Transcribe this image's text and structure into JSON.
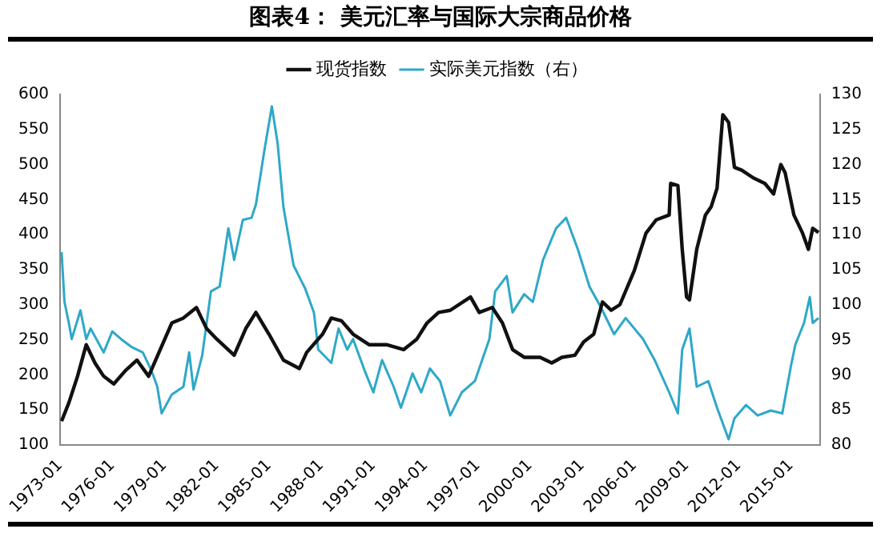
{
  "chart_data": {
    "type": "line",
    "title": "图表4：  美元汇率与国际大宗商品价格",
    "xlim": [
      "1973-01",
      "2016-09"
    ],
    "xticks": [
      "1973-01",
      "1976-01",
      "1979-01",
      "1982-01",
      "1985-01",
      "1988-01",
      "1991-01",
      "1994-01",
      "1997-01",
      "2000-01",
      "2003-01",
      "2006-01",
      "2009-01",
      "2012-01",
      "2015-01"
    ],
    "ylim": [
      100,
      600
    ],
    "yticks": [
      100,
      150,
      200,
      250,
      300,
      350,
      400,
      450,
      500,
      550,
      600
    ],
    "y2lim": [
      80,
      130
    ],
    "y2ticks": [
      80,
      85,
      90,
      95,
      100,
      105,
      110,
      115,
      120,
      125,
      130
    ],
    "grid": false,
    "legend": "top",
    "marker": "none",
    "line_style": "solid",
    "series": [
      {
        "name": "现货指数",
        "color": "#111111",
        "x": [
          "1973-02",
          "1973-07",
          "1974-01",
          "1974-07",
          "1975-01",
          "1975-07",
          "1976-02",
          "1976-10",
          "1977-06",
          "1978-02",
          "1978-10",
          "1979-06",
          "1980-02",
          "1980-11",
          "1981-06",
          "1982-01",
          "1983-01",
          "1983-09",
          "1984-04",
          "1985-01",
          "1985-11",
          "1986-10",
          "1987-03",
          "1988-02",
          "1988-08",
          "1989-03",
          "1989-11",
          "1990-10",
          "1991-10",
          "1992-10",
          "1993-07",
          "1994-02",
          "1994-10",
          "1995-06",
          "1996-08",
          "1997-02",
          "1997-11",
          "1998-06",
          "1999-01",
          "1999-09",
          "2000-08",
          "2001-04",
          "2001-11",
          "2002-08",
          "2003-02",
          "2003-09",
          "2004-03",
          "2004-09",
          "2005-03",
          "2006-01",
          "2006-09",
          "2007-04",
          "2008-01",
          "2008-02",
          "2008-07",
          "2008-10",
          "2009-01",
          "2009-03",
          "2009-08",
          "2010-02",
          "2010-06",
          "2010-10",
          "2011-02",
          "2011-06",
          "2011-10",
          "2012-03",
          "2012-11",
          "2013-07",
          "2014-01",
          "2014-06",
          "2014-09",
          "2015-03",
          "2015-09",
          "2016-01",
          "2016-04",
          "2016-08"
        ],
        "values": [
          134,
          160,
          198,
          243,
          217,
          198,
          187,
          206,
          221,
          198,
          236,
          274,
          281,
          296,
          266,
          251,
          228,
          266,
          289,
          258,
          221,
          209,
          232,
          258,
          281,
          277,
          258,
          243,
          243,
          236,
          251,
          274,
          289,
          292,
          311,
          289,
          296,
          274,
          236,
          225,
          225,
          217,
          225,
          228,
          247,
          258,
          304,
          292,
          300,
          349,
          402,
          421,
          428,
          473,
          470,
          379,
          311,
          307,
          379,
          428,
          440,
          466,
          571,
          560,
          496,
          492,
          481,
          473,
          458,
          500,
          488,
          428,
          402,
          379,
          409,
          403
        ]
      },
      {
        "name": "实际美元指数（右）",
        "color": "#2ea8c8",
        "axis": "y2",
        "x": [
          "1973-02",
          "1973-04",
          "1973-07",
          "1973-09",
          "1974-03",
          "1974-07",
          "1974-10",
          "1975-07",
          "1976-01",
          "1976-07",
          "1977-02",
          "1977-10",
          "1978-04",
          "1978-08",
          "1978-11",
          "1979-06",
          "1980-02",
          "1980-06",
          "1980-09",
          "1981-03",
          "1981-09",
          "1982-03",
          "1982-09",
          "1983-01",
          "1983-07",
          "1984-01",
          "1984-04",
          "1984-10",
          "1985-03",
          "1985-07",
          "1985-11",
          "1986-06",
          "1987-02",
          "1987-08",
          "1987-11",
          "1988-08",
          "1989-01",
          "1989-07",
          "1989-11",
          "1990-07",
          "1991-01",
          "1991-07",
          "1992-03",
          "1992-08",
          "1993-04",
          "1993-10",
          "1994-04",
          "1994-11",
          "1995-06",
          "1996-02",
          "1996-11",
          "1997-09",
          "1998-01",
          "1998-09",
          "1999-01",
          "1999-09",
          "2000-03",
          "2000-10",
          "2001-07",
          "2002-02",
          "2002-10",
          "2003-06",
          "2004-02",
          "2004-11",
          "2005-07",
          "2006-07",
          "2007-03",
          "2008-01",
          "2008-07",
          "2008-10",
          "2009-03",
          "2009-08",
          "2010-04",
          "2010-10",
          "2011-06",
          "2011-10",
          "2012-06",
          "2013-02",
          "2013-11",
          "2014-07",
          "2015-01",
          "2015-04",
          "2015-10",
          "2016-02",
          "2016-04",
          "2016-08"
        ],
        "values": [
          107.5,
          100.4,
          97.4,
          95.1,
          99.2,
          95.1,
          96.6,
          93.2,
          96.2,
          95.1,
          94.0,
          93.2,
          90.6,
          88.3,
          84.5,
          87.2,
          88.3,
          93.2,
          87.9,
          92.8,
          101.9,
          102.6,
          110.9,
          106.4,
          112.1,
          112.4,
          114.3,
          122.2,
          128.3,
          123.0,
          113.9,
          105.6,
          102.3,
          98.9,
          93.6,
          91.7,
          96.6,
          93.6,
          95.1,
          90.6,
          87.5,
          92.1,
          88.3,
          85.3,
          90.2,
          87.5,
          90.9,
          89.1,
          84.2,
          87.5,
          89.1,
          95.1,
          101.9,
          104.1,
          98.9,
          101.5,
          100.4,
          106.4,
          110.9,
          112.4,
          107.9,
          102.6,
          99.6,
          95.8,
          98.1,
          95.1,
          92.1,
          87.5,
          84.5,
          93.6,
          96.6,
          88.3,
          89.1,
          85.3,
          80.8,
          83.8,
          85.7,
          84.2,
          84.9,
          84.5,
          91.3,
          94.3,
          97.4,
          101.1,
          97.4,
          98.1
        ]
      }
    ]
  }
}
